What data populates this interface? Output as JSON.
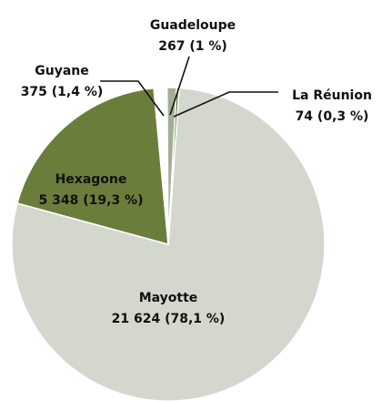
{
  "chart_data": {
    "type": "pie",
    "categories": [
      "Mayotte",
      "Hexagone",
      "Guyane",
      "Guadeloupe",
      "La Réunion"
    ],
    "values": [
      21624,
      5348,
      375,
      267,
      74
    ],
    "value_labels": [
      "21 624 (78,1 %)",
      "5 348 (19,3 %)",
      "375 (1,4 %)",
      "267 (1 %)",
      "74 (0,3 %)"
    ],
    "colors": [
      "#d4d7cd",
      "#6b7d3b",
      "#ffffff",
      "#a3ae95",
      "#4f6a31"
    ]
  }
}
